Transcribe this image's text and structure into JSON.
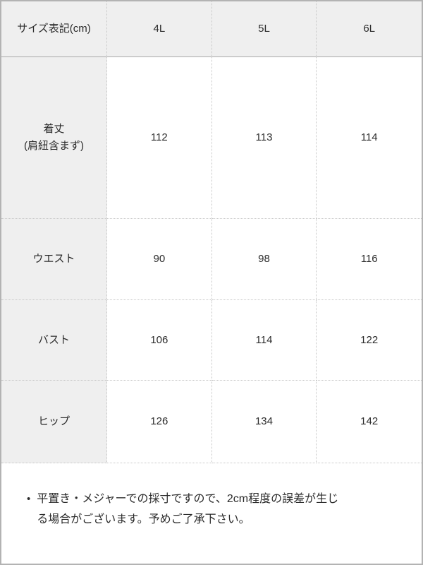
{
  "chart_data": {
    "type": "table",
    "unit": "cm",
    "header": {
      "label": "サイズ表記(cm)",
      "sizes": [
        "4L",
        "5L",
        "6L"
      ]
    },
    "rows": [
      {
        "label": "着丈\n(肩紐含まず)",
        "values": [
          "112",
          "113",
          "114"
        ]
      },
      {
        "label": "ウエスト",
        "values": [
          "90",
          "98",
          "116"
        ]
      },
      {
        "label": "バスト",
        "values": [
          "106",
          "114",
          "122"
        ]
      },
      {
        "label": "ヒップ",
        "values": [
          "126",
          "134",
          "142"
        ]
      }
    ]
  },
  "note": {
    "bullet": "•",
    "text": "平置き・メジャーでの採寸ですので、2cm程度の誤差が生じる場合がございます。予めご了承下さい。"
  },
  "colors": {
    "header_bg": "#efefef",
    "label_column_bg": "#efefef",
    "outer_border": "#b3b3b3",
    "header_underline": "#a9a9a9",
    "cell_divider_dotted": "#c6c6c6",
    "text": "#2b2b2b"
  }
}
